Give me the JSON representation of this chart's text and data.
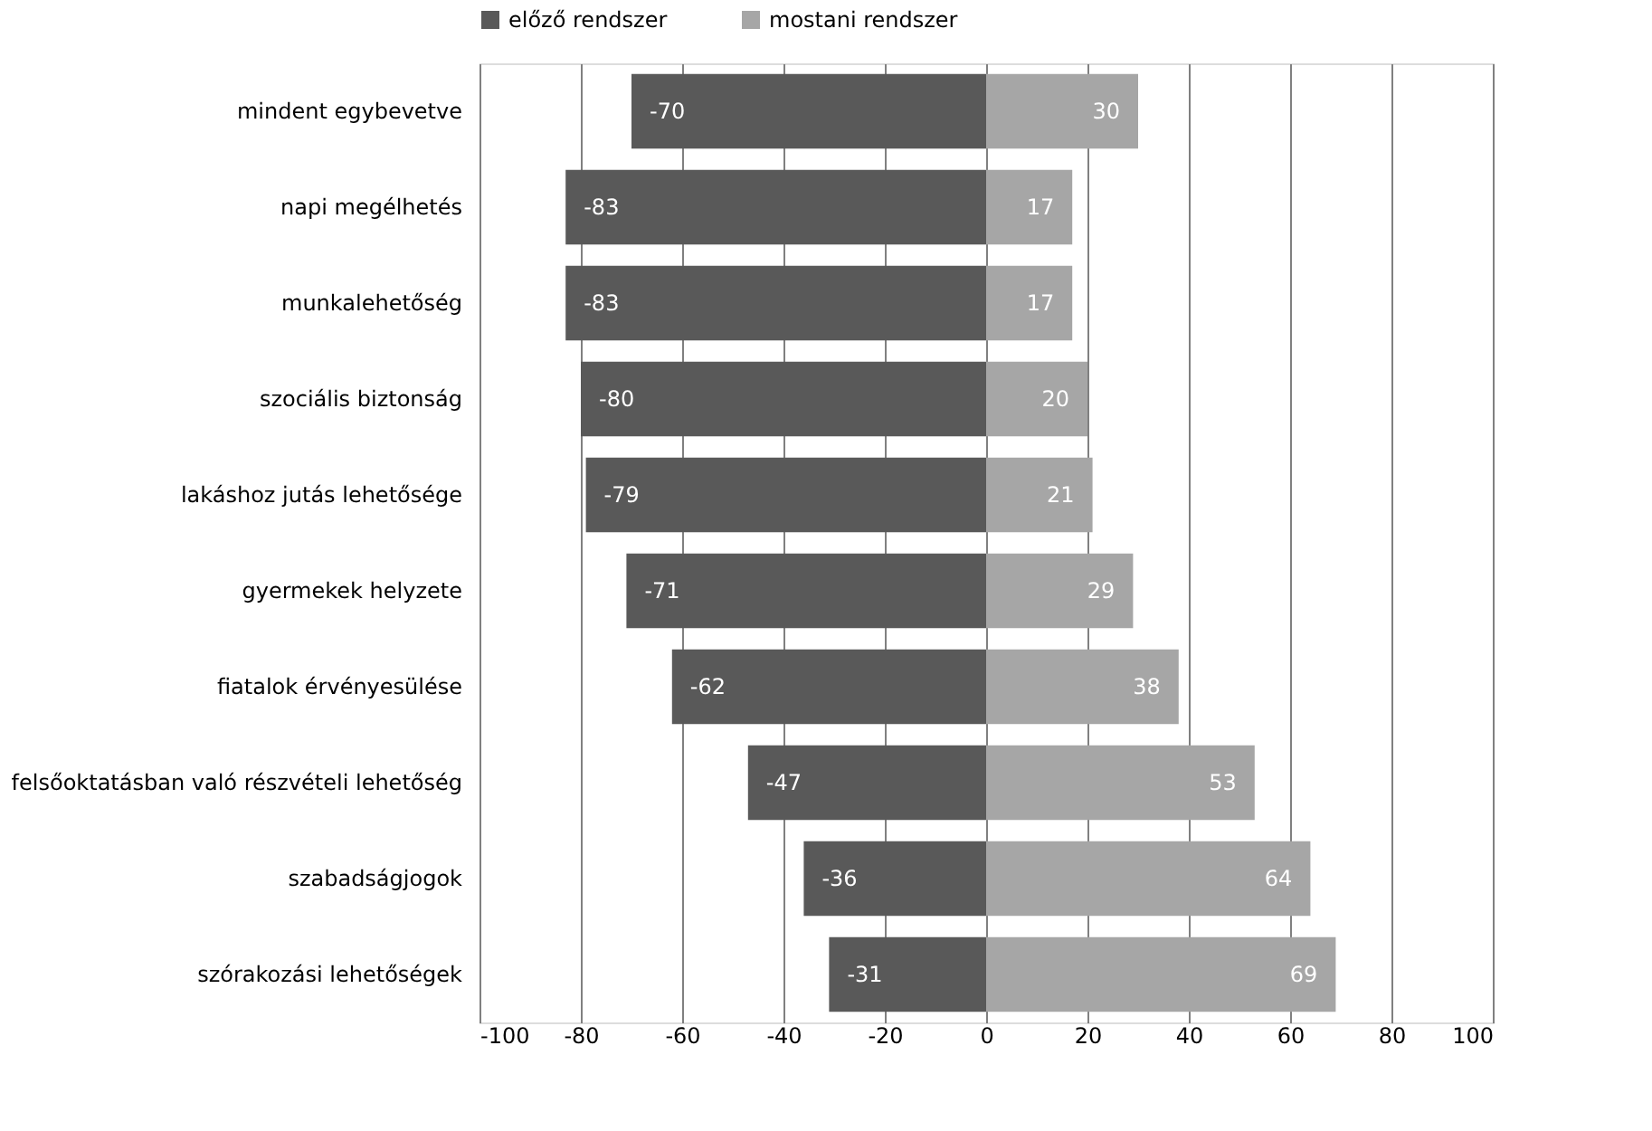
{
  "chart_data": {
    "type": "bar",
    "orientation": "horizontal",
    "categories": [
      "mindent egybevetve",
      "napi megélhetés",
      "munkalehetőség",
      "szociális biztonság",
      "lakáshoz jutás lehetősége",
      "gyermekek helyzete",
      "fiatalok érvényesülése",
      "felsőoktatásban való részvételi lehetőség",
      "szabadságjogok",
      "szórakozási lehetőségek"
    ],
    "series": [
      {
        "name": "előző rendszer",
        "color": "#595959",
        "values": [
          -70,
          -83,
          -83,
          -80,
          -79,
          -71,
          -62,
          -47,
          -36,
          -31
        ]
      },
      {
        "name": "mostani rendszer",
        "color": "#a6a6a6",
        "values": [
          30,
          17,
          17,
          20,
          21,
          29,
          38,
          53,
          64,
          69
        ]
      }
    ],
    "xlim": [
      -100,
      100
    ],
    "xticks": [
      -100,
      -80,
      -60,
      -40,
      -20,
      0,
      20,
      40,
      60,
      80,
      100
    ],
    "stacked": true,
    "grid": "x",
    "legend": "top",
    "data_labels": true
  }
}
